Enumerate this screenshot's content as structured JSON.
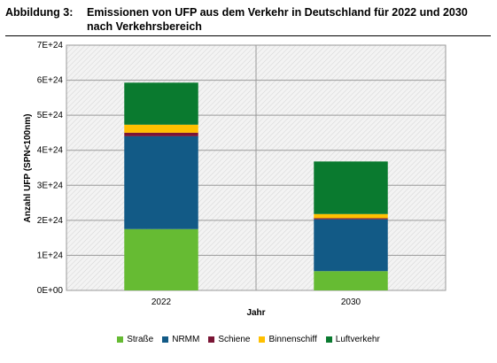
{
  "caption": {
    "label": "Abbildung 3:",
    "title": "Emissionen von UFP aus dem Verkehr in Deutschland für 2022 und 2030 nach Verkehrsbereich"
  },
  "chart_data": {
    "type": "bar",
    "stacked": true,
    "categories": [
      "2022",
      "2030"
    ],
    "xlabel": "Jahr",
    "ylabel": "Anzahl UFP (SPN<100nm)",
    "ylim": [
      0,
      7e+24
    ],
    "yticks": [
      "0E+00",
      "1E+24",
      "2E+24",
      "3E+24",
      "4E+24",
      "5E+24",
      "6E+24",
      "7E+24"
    ],
    "grid": true,
    "legend_position": "bottom",
    "series": [
      {
        "name": "Straße",
        "color": "#66bb33",
        "values": [
          1.75e+24,
          5.5e+23
        ]
      },
      {
        "name": "NRMM",
        "color": "#125a86",
        "values": [
          2.65e+24,
          1.48e+24
        ]
      },
      {
        "name": "Schiene",
        "color": "#7a1535",
        "values": [
          1e+23,
          3e+22
        ]
      },
      {
        "name": "Binnenschiff",
        "color": "#ffc000",
        "values": [
          2.3e+23,
          1.2e+23
        ]
      },
      {
        "name": "Luftverkehr",
        "color": "#0a7a2f",
        "values": [
          1.2e+24,
          1.5e+24
        ]
      }
    ]
  }
}
